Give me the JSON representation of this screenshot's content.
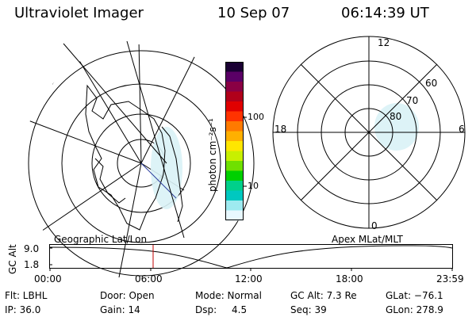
{
  "header": {
    "instrument": "Ultraviolet Imager",
    "date": "10 Sep 07",
    "time": "06:14:39 UT"
  },
  "colorbar": {
    "unit_label": "photon cm⁻²s⁻¹",
    "ticks": [
      "100",
      "10"
    ],
    "colors": [
      "#1a0033",
      "#5a0066",
      "#8a0044",
      "#b0001a",
      "#e00000",
      "#ff3300",
      "#ff7a00",
      "#ffb000",
      "#ffe600",
      "#c8f000",
      "#6fe000",
      "#00d000",
      "#00d08a",
      "#00c8c0",
      "#9eeaf0",
      "#e8f8ff"
    ]
  },
  "polar_plot": {
    "mlt_labels": {
      "top": "12",
      "left": "18",
      "right": "6",
      "bottom": "0"
    },
    "lat_labels": [
      "60",
      "70",
      "80"
    ]
  },
  "timeline": {
    "left_label": "Geographic Lat/Lon",
    "right_label": "Apex MLat/MLT",
    "axis_title": "GC Alt",
    "y_top": "9.0",
    "y_bottom": "1.8",
    "x_ticks": [
      "00:00",
      "06:00",
      "12:00",
      "18:00",
      "23:59"
    ]
  },
  "status": {
    "flt": "Flt: LBHL",
    "door": "Door: Open",
    "mode": "Mode: Normal",
    "gc_alt": "GC Alt: 7.3 Re",
    "glat": "GLat: −76.1",
    "ip": "IP: 36.0",
    "gain": "Gain: 14",
    "dsp_label": "Dsp:",
    "dsp_value": "4.5",
    "seq": "Seq: 39",
    "glon": "GLon: 278.9"
  }
}
